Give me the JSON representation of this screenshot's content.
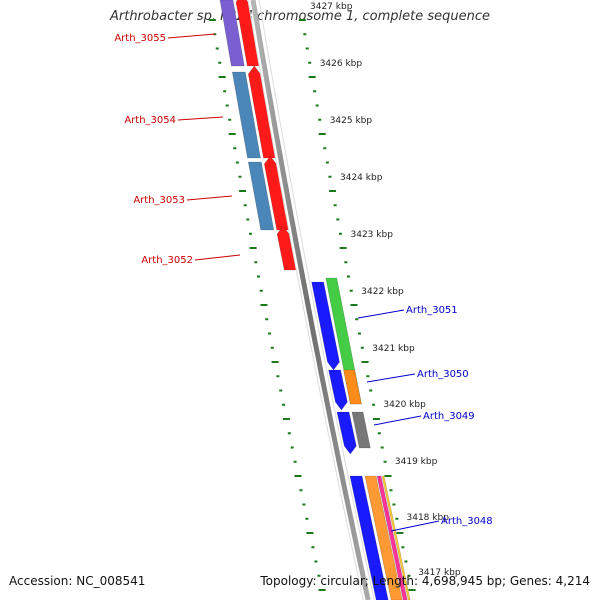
{
  "title": "Arthrobacter sp. FB24 chromosome 1, complete sequence",
  "footer": {
    "accession": "Accession: NC_008541",
    "summary": "Topology: circular; Length: 4,698,945 bp; Genes: 4,214"
  },
  "colors": {
    "reverse_label": "#cc0000",
    "forward_label": "#0000cc",
    "tick": "#1a7a1a",
    "backbone": "#888888"
  },
  "scale_labels": [
    "3427 kbp",
    "3426 kbp",
    "3425 kbp",
    "3424 kbp",
    "3423 kbp",
    "3422 kbp",
    "3421 kbp",
    "3420 kbp",
    "3419 kbp",
    "3418 kbp",
    "3417 kbp"
  ],
  "reverse_genes": [
    {
      "label": "Arth_3055",
      "feature_color": "#7a5fd0",
      "cds_color": "#ff1a1a"
    },
    {
      "label": "Arth_3054",
      "feature_color": "#4a86b8",
      "cds_color": "#ff1a1a"
    },
    {
      "label": "Arth_3053",
      "feature_color": "#4a86b8",
      "cds_color": "#ff1a1a"
    },
    {
      "label": "Arth_3052",
      "feature_color": "",
      "cds_color": "#ff1a1a"
    }
  ],
  "forward_genes": [
    {
      "label": "Arth_3051",
      "cds_color": "#1a1aff",
      "feature_color": "#44cc44"
    },
    {
      "label": "Arth_3050",
      "cds_color": "#1a1aff",
      "feature_color": "#ff8c1a"
    },
    {
      "label": "Arth_3049",
      "cds_color": "#1a1aff",
      "feature_color": "#777777"
    },
    {
      "label": "Arth_3048",
      "cds_color": "#1a1aff",
      "feature_color": "#ff9933"
    }
  ]
}
